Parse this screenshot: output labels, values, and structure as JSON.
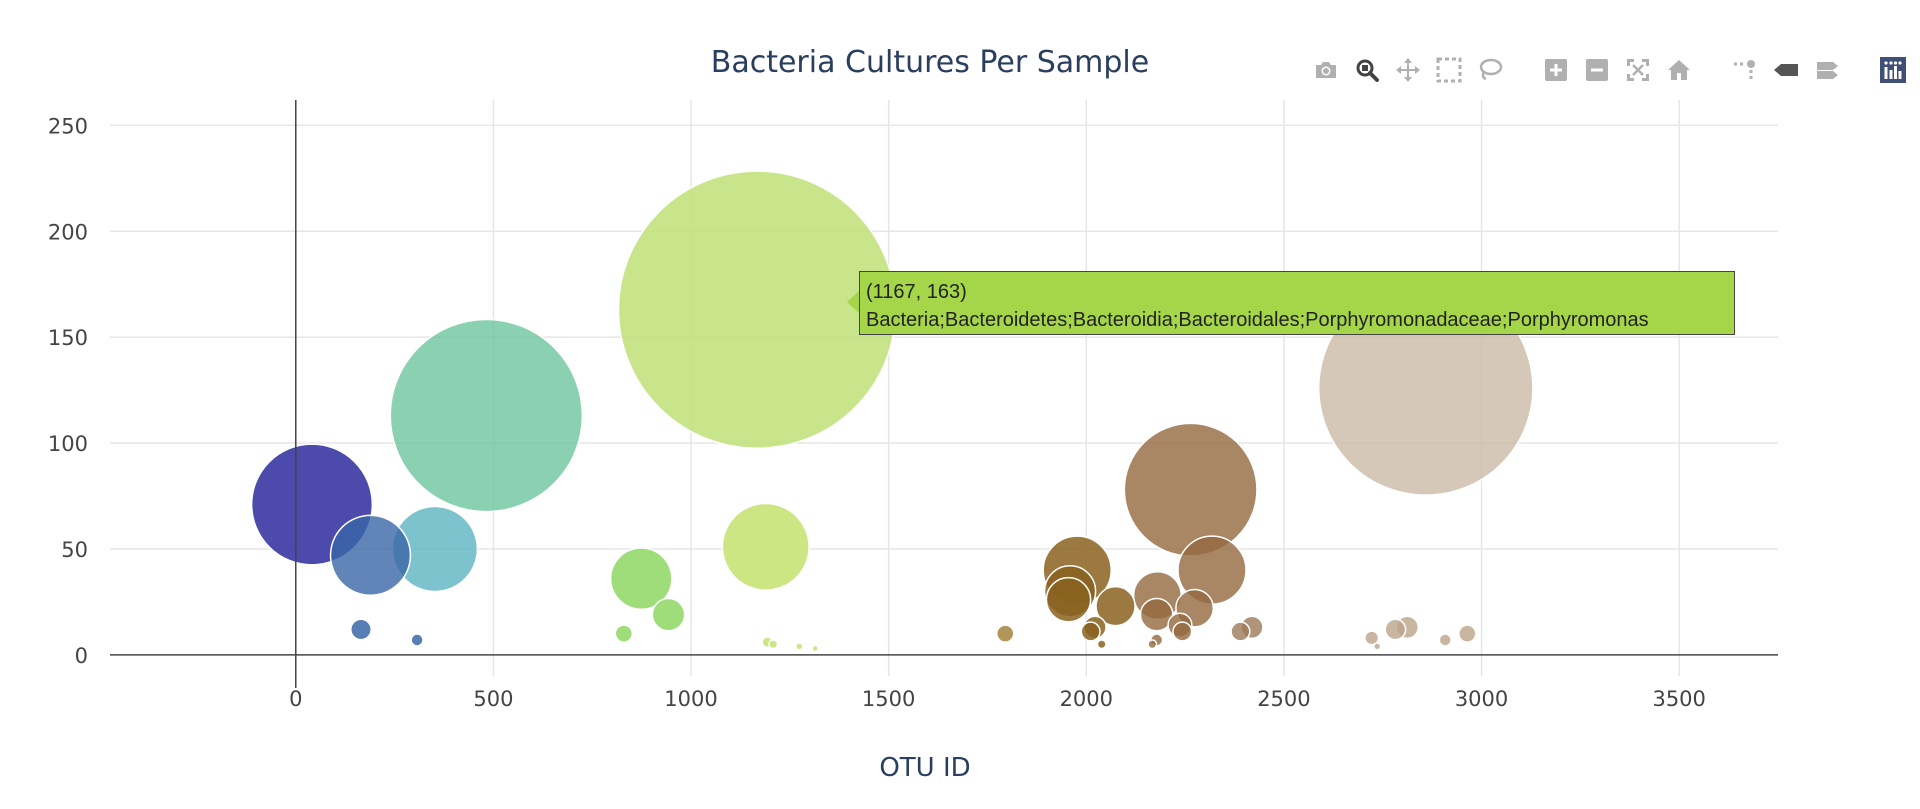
{
  "chart_data": {
    "type": "scatter",
    "title": "Bacteria Cultures Per Sample",
    "xlabel": "OTU ID",
    "ylabel": "",
    "xlim": [
      -470,
      3750
    ],
    "ylim": [
      -10,
      262
    ],
    "xticks": [
      0,
      500,
      1000,
      1500,
      2000,
      2500,
      3000,
      3500
    ],
    "yticks": [
      0,
      50,
      100,
      150,
      200,
      250
    ],
    "grid": true,
    "marker_size_encodes": "sample value (y)",
    "points": [
      {
        "x": 41,
        "y": 71,
        "color": "#2d2a9c",
        "alpha": 0.85
      },
      {
        "x": 1167,
        "y": 163,
        "color": "#bfe078",
        "alpha": 0.85
      },
      {
        "x": 482,
        "y": 113,
        "color": "#6cc59e",
        "alpha": 0.8
      },
      {
        "x": 189,
        "y": 47,
        "color": "#3a67a8",
        "alpha": 0.8
      },
      {
        "x": 352,
        "y": 50,
        "color": "#5db4c2",
        "alpha": 0.8
      },
      {
        "x": 874,
        "y": 36,
        "color": "#8ed663",
        "alpha": 0.85
      },
      {
        "x": 943,
        "y": 19,
        "color": "#8ed663",
        "alpha": 0.85
      },
      {
        "x": 830,
        "y": 10,
        "color": "#8ed663",
        "alpha": 0.85
      },
      {
        "x": 1189,
        "y": 51,
        "color": "#c4e26f",
        "alpha": 0.85
      },
      {
        "x": 1193,
        "y": 6,
        "color": "#c4e26f",
        "alpha": 0.85
      },
      {
        "x": 1208,
        "y": 5,
        "color": "#c4e26f",
        "alpha": 0.85
      },
      {
        "x": 1274,
        "y": 4,
        "color": "#c4e26f",
        "alpha": 0.85
      },
      {
        "x": 1314,
        "y": 3,
        "color": "#c4e26f",
        "alpha": 0.85
      },
      {
        "x": 1795,
        "y": 10,
        "color": "#a2843c",
        "alpha": 0.85
      },
      {
        "x": 2264,
        "y": 78,
        "color": "#93693e",
        "alpha": 0.8
      },
      {
        "x": 1977,
        "y": 40,
        "color": "#8a6220",
        "alpha": 0.85
      },
      {
        "x": 1959,
        "y": 30,
        "color": "#8a6220",
        "alpha": 0.85
      },
      {
        "x": 1955,
        "y": 26,
        "color": "#8a6220",
        "alpha": 0.85
      },
      {
        "x": 2011,
        "y": 11,
        "color": "#8a6220",
        "alpha": 0.85
      },
      {
        "x": 2022,
        "y": 13,
        "color": "#8a6220",
        "alpha": 0.85
      },
      {
        "x": 2039,
        "y": 5,
        "color": "#8a6220",
        "alpha": 0.85
      },
      {
        "x": 2074,
        "y": 23,
        "color": "#8a6220",
        "alpha": 0.85
      },
      {
        "x": 2180,
        "y": 28,
        "color": "#93693e",
        "alpha": 0.8
      },
      {
        "x": 2178,
        "y": 19,
        "color": "#93693e",
        "alpha": 0.8
      },
      {
        "x": 2167,
        "y": 5,
        "color": "#93693e",
        "alpha": 0.8
      },
      {
        "x": 2178,
        "y": 7,
        "color": "#93693e",
        "alpha": 0.8
      },
      {
        "x": 2237,
        "y": 14,
        "color": "#93693e",
        "alpha": 0.8
      },
      {
        "x": 2243,
        "y": 11,
        "color": "#93693e",
        "alpha": 0.8
      },
      {
        "x": 2274,
        "y": 22,
        "color": "#93693e",
        "alpha": 0.8
      },
      {
        "x": 2318,
        "y": 40,
        "color": "#93693e",
        "alpha": 0.8
      },
      {
        "x": 2390,
        "y": 11,
        "color": "#9c7a5a",
        "alpha": 0.8
      },
      {
        "x": 2419,
        "y": 13,
        "color": "#9c7a5a",
        "alpha": 0.8
      },
      {
        "x": 2859,
        "y": 126,
        "color": "#c7b6a2",
        "alpha": 0.75
      },
      {
        "x": 2722,
        "y": 8,
        "color": "#bca48a",
        "alpha": 0.8
      },
      {
        "x": 2736,
        "y": 4,
        "color": "#bca48a",
        "alpha": 0.8
      },
      {
        "x": 2782,
        "y": 12,
        "color": "#bca48a",
        "alpha": 0.8
      },
      {
        "x": 2812,
        "y": 13,
        "color": "#bca48a",
        "alpha": 0.8
      },
      {
        "x": 2908,
        "y": 7,
        "color": "#bca48a",
        "alpha": 0.8
      },
      {
        "x": 2964,
        "y": 10,
        "color": "#bca48a",
        "alpha": 0.8
      },
      {
        "x": 165,
        "y": 12,
        "color": "#3a67a8",
        "alpha": 0.85
      },
      {
        "x": 307,
        "y": 7,
        "color": "#3a67a8",
        "alpha": 0.85
      }
    ],
    "hover": {
      "x": 1167,
      "y": 163,
      "label": "(1167, 163)",
      "text": "Bacteria;Bacteroidetes;Bacteroidia;Bacteroidales;Porphyromonadaceae;Porphyromonas",
      "background": "#a5d649"
    }
  },
  "modebar": {
    "icons": [
      "camera-icon",
      "zoom-icon",
      "pan-icon",
      "box-select-icon",
      "lasso-select-icon",
      "zoom-in-icon",
      "zoom-out-icon",
      "autoscale-icon",
      "reset-axes-icon",
      "spike-lines-icon",
      "hover-closest-icon",
      "hover-compare-icon",
      "plotly-logo-icon"
    ],
    "active_color": "#444444",
    "inactive_color": "#b0b0b0",
    "logo_color": "#3f4f75"
  }
}
